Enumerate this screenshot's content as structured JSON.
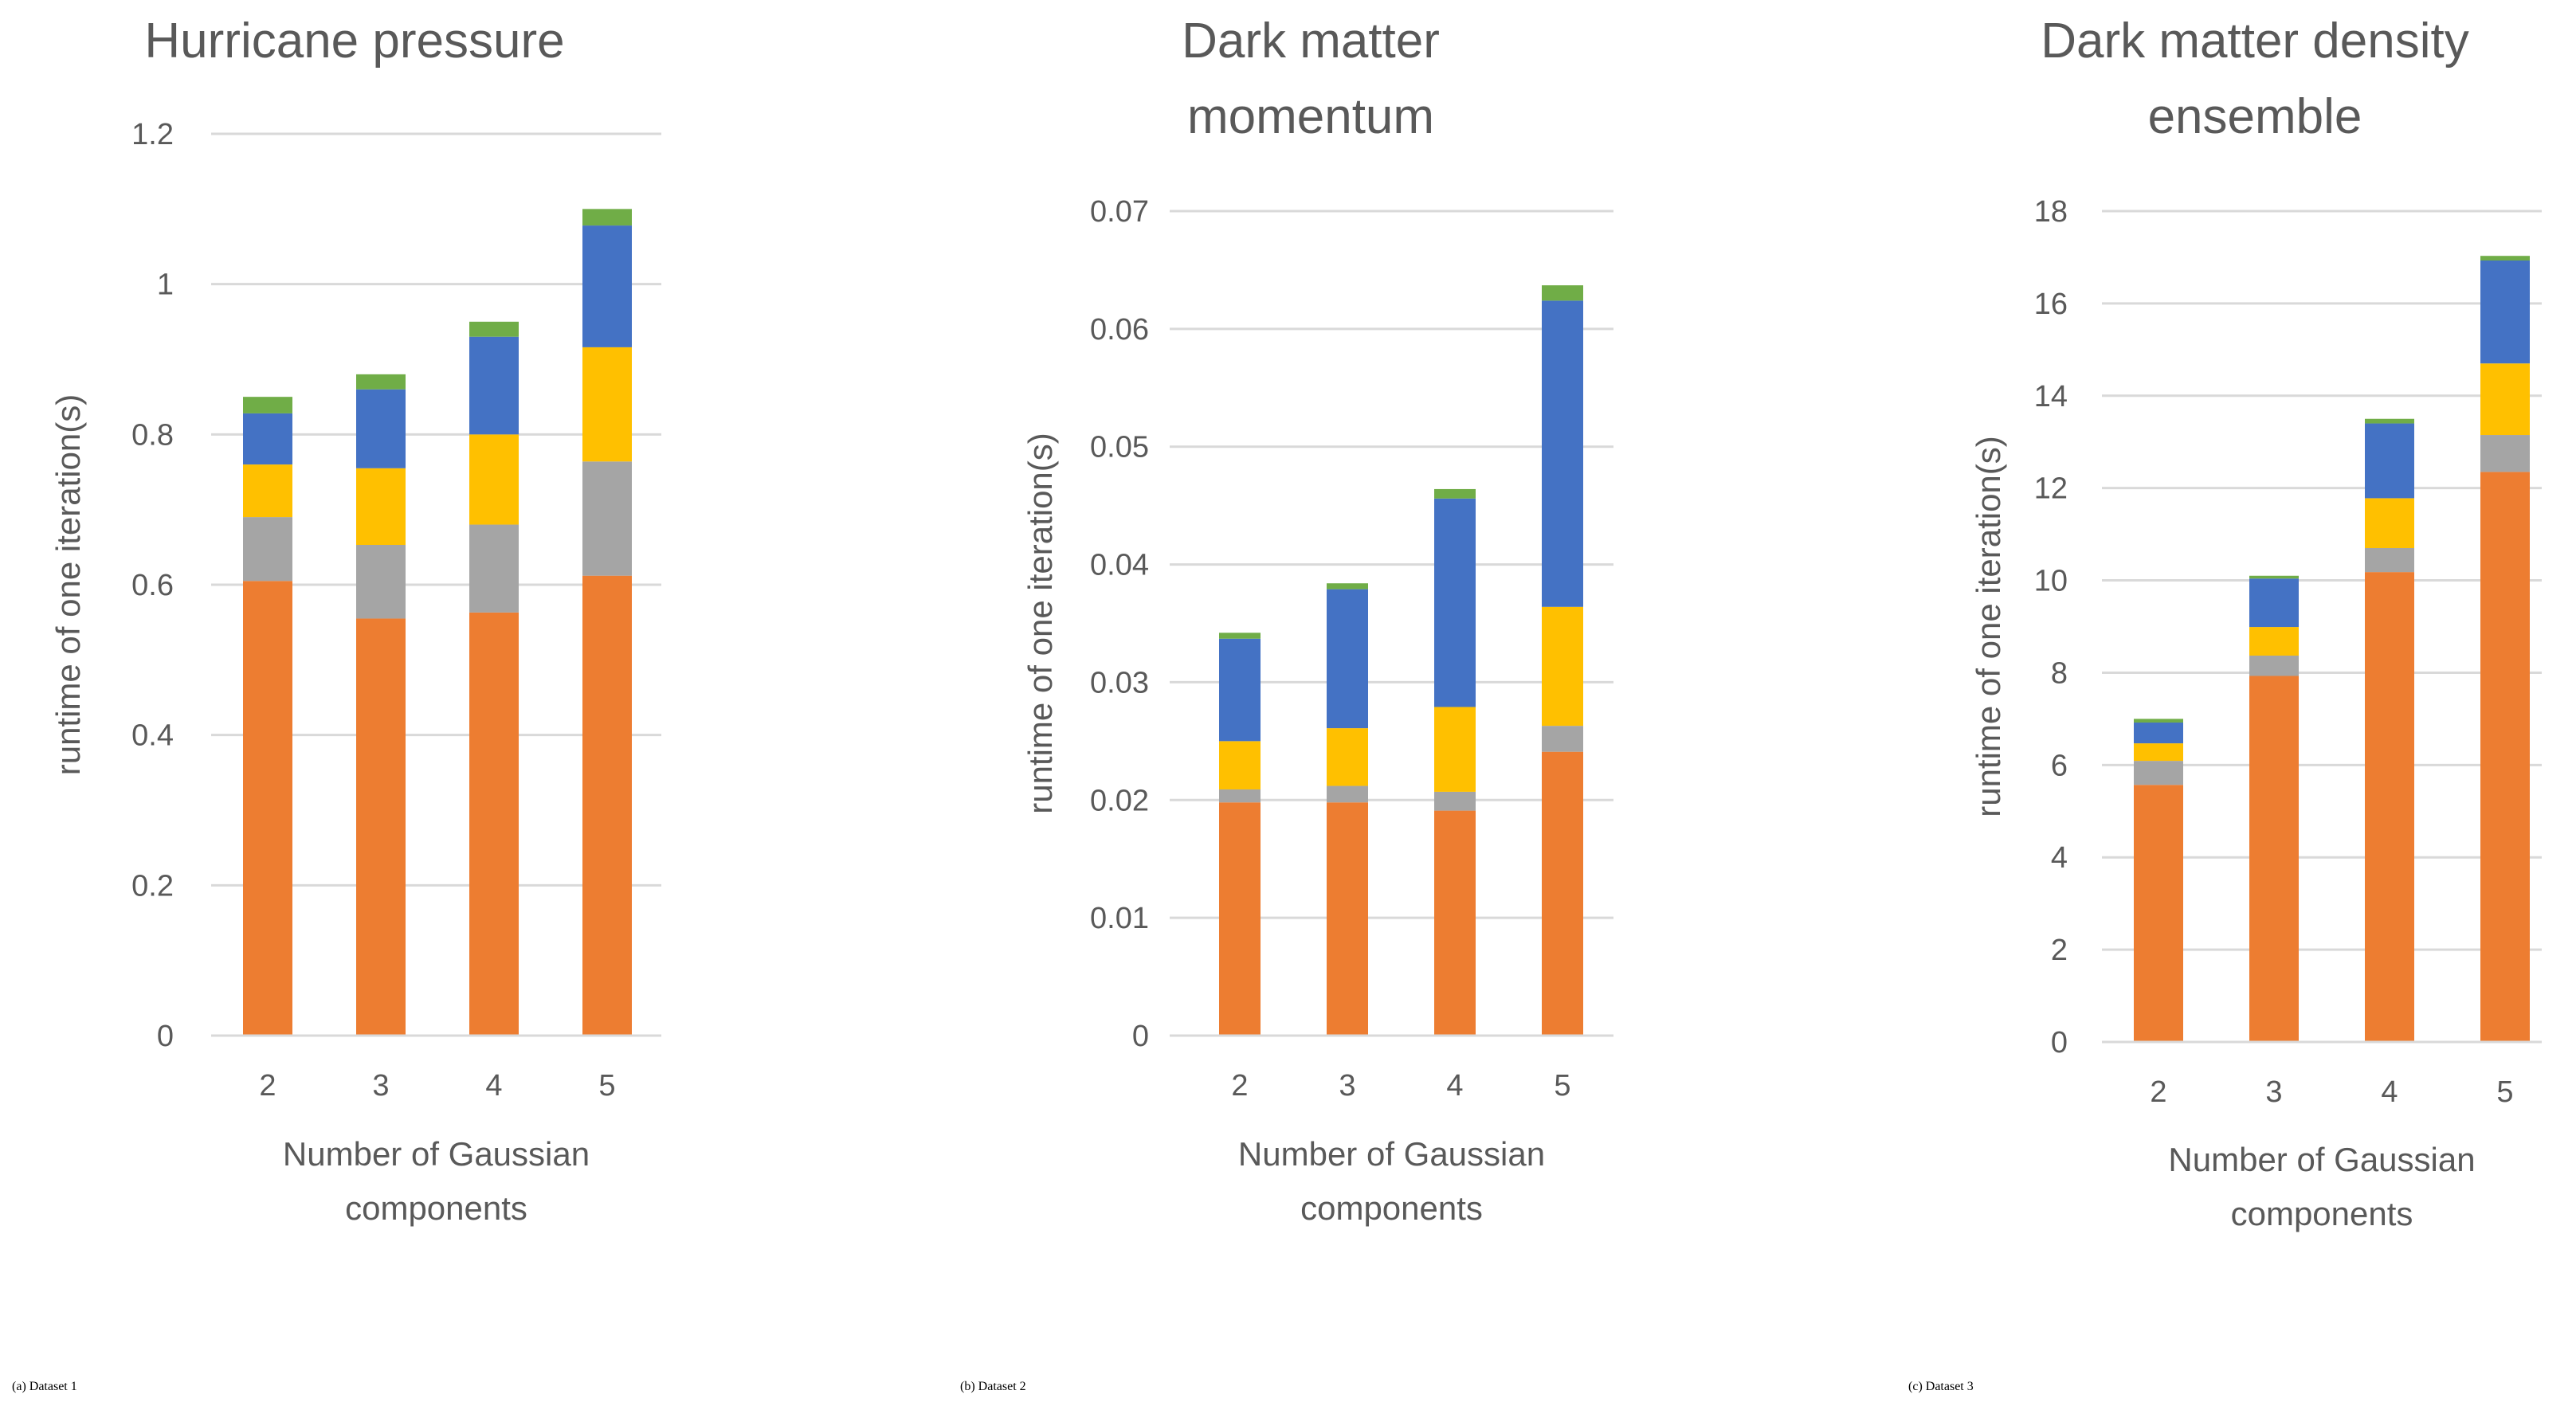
{
  "colors": {
    "orange": "#ED7D31",
    "gray": "#A5A5A5",
    "yellow": "#FFC000",
    "blue": "#4472C4",
    "green": "#70AD47"
  },
  "captions": [
    {
      "letter": "a",
      "open": "(",
      "close": ")",
      "text": " Dataset 1"
    },
    {
      "letter": "b",
      "open": "(",
      "close": ")",
      "text": " Dataset 2"
    },
    {
      "letter": "c",
      "open": "(",
      "close": ")",
      "text": " Dataset 3"
    }
  ],
  "chart_data": [
    {
      "type": "bar",
      "stacked": true,
      "title": "Hurricane pressure",
      "title_lines": [
        "Hurricane pressure"
      ],
      "xlabel": "Number of Gaussian components",
      "xlabel_lines": [
        "Number of Gaussian",
        "components"
      ],
      "ylabel": "runtime of one iteration(s)",
      "ylim": [
        0,
        1.2
      ],
      "yticks": [
        "0",
        "0.2",
        "0.4",
        "0.6",
        "0.8",
        "1",
        "1.2"
      ],
      "ytick_values": [
        0,
        0.2,
        0.4,
        0.6,
        0.8,
        1.0,
        1.2
      ],
      "categories": [
        "2",
        "3",
        "4",
        "5"
      ],
      "series": [
        {
          "name": "orange",
          "color": "#ED7D31",
          "values": [
            0.605,
            0.555,
            0.563,
            0.612
          ]
        },
        {
          "name": "gray",
          "color": "#A5A5A5",
          "values": [
            0.085,
            0.098,
            0.117,
            0.152
          ]
        },
        {
          "name": "yellow",
          "color": "#FFC000",
          "values": [
            0.07,
            0.102,
            0.12,
            0.152
          ]
        },
        {
          "name": "blue",
          "color": "#4472C4",
          "values": [
            0.068,
            0.105,
            0.13,
            0.162
          ]
        },
        {
          "name": "green",
          "color": "#70AD47",
          "values": [
            0.022,
            0.02,
            0.02,
            0.022
          ]
        }
      ]
    },
    {
      "type": "bar",
      "stacked": true,
      "title": "Dark matter momentum",
      "title_lines": [
        "Dark matter",
        "momentum"
      ],
      "xlabel": "Number of Gaussian components",
      "xlabel_lines": [
        "Number of Gaussian",
        "components"
      ],
      "ylabel": "runtime of one iteration(s)",
      "ylim": [
        0,
        0.07
      ],
      "yticks": [
        "0",
        "0.01",
        "0.02",
        "0.03",
        "0.04",
        "0.05",
        "0.06",
        "0.07"
      ],
      "ytick_values": [
        0,
        0.01,
        0.02,
        0.03,
        0.04,
        0.05,
        0.06,
        0.07
      ],
      "categories": [
        "2",
        "3",
        "4",
        "5"
      ],
      "series": [
        {
          "name": "orange",
          "color": "#ED7D31",
          "values": [
            0.0198,
            0.0198,
            0.0191,
            0.0241
          ]
        },
        {
          "name": "gray",
          "color": "#A5A5A5",
          "values": [
            0.0011,
            0.0014,
            0.0016,
            0.0022
          ]
        },
        {
          "name": "yellow",
          "color": "#FFC000",
          "values": [
            0.0041,
            0.0049,
            0.0072,
            0.0101
          ]
        },
        {
          "name": "blue",
          "color": "#4472C4",
          "values": [
            0.0087,
            0.0118,
            0.0177,
            0.026
          ]
        },
        {
          "name": "green",
          "color": "#70AD47",
          "values": [
            0.0005,
            0.0005,
            0.0008,
            0.0013
          ]
        }
      ]
    },
    {
      "type": "bar",
      "stacked": true,
      "title": "Dark matter density ensemble",
      "title_lines": [
        "Dark matter density",
        "ensemble"
      ],
      "xlabel": "Number of Gaussian components",
      "xlabel_lines": [
        "Number of Gaussian",
        "components"
      ],
      "ylabel": "runtime of one iteration(s)",
      "ylim": [
        0,
        18
      ],
      "yticks": [
        "0",
        "2",
        "4",
        "6",
        "8",
        "10",
        "12",
        "14",
        "16",
        "18"
      ],
      "ytick_values": [
        0,
        2,
        4,
        6,
        8,
        10,
        12,
        14,
        16,
        18
      ],
      "categories": [
        "2",
        "3",
        "4",
        "5"
      ],
      "series": [
        {
          "name": "orange",
          "color": "#ED7D31",
          "values": [
            5.57,
            7.93,
            10.18,
            12.35
          ]
        },
        {
          "name": "gray",
          "color": "#A5A5A5",
          "values": [
            0.52,
            0.44,
            0.52,
            0.8
          ]
        },
        {
          "name": "yellow",
          "color": "#FFC000",
          "values": [
            0.38,
            0.62,
            1.08,
            1.55
          ]
        },
        {
          "name": "blue",
          "color": "#4472C4",
          "values": [
            0.45,
            1.05,
            1.62,
            2.23
          ]
        },
        {
          "name": "green",
          "color": "#70AD47",
          "values": [
            0.08,
            0.06,
            0.1,
            0.1
          ]
        }
      ]
    }
  ]
}
